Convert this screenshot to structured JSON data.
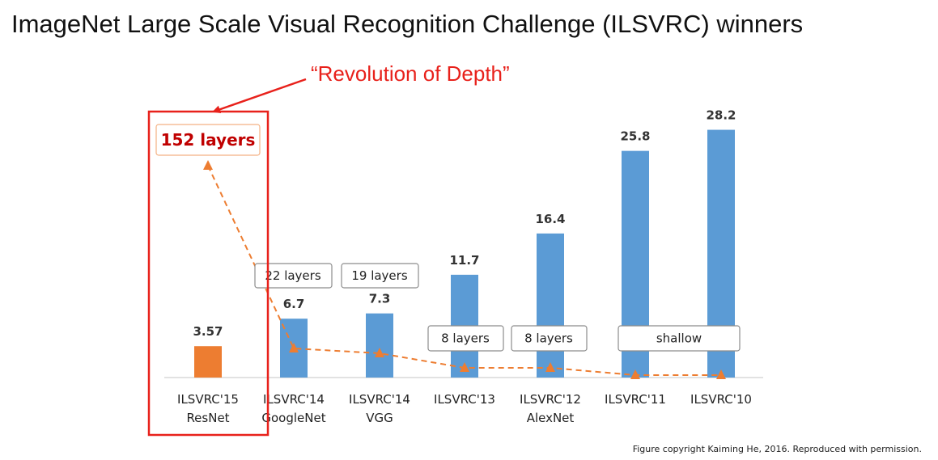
{
  "slide": {
    "title": "ImageNet Large Scale Visual Recognition Challenge (ILSVRC) winners",
    "highlight_note": "“Revolution of Depth”",
    "credit": "Figure copyright Kaiming He, 2016. Reproduced with permission."
  },
  "colors": {
    "accent_red": "#e8211b",
    "resnet_bar": "#ed7d31",
    "other_bar": "#5b9bd5",
    "depth_line": "#ed7d31",
    "highlight_depth_text": "#c00000"
  },
  "chart_data": {
    "type": "bar",
    "title": "",
    "xlabel": "",
    "ylabel": "",
    "ylim": [
      0,
      30
    ],
    "grid": false,
    "categories": [
      [
        "ILSVRC'15",
        "ResNet"
      ],
      [
        "ILSVRC'14",
        "GoogleNet"
      ],
      [
        "ILSVRC'14",
        "VGG"
      ],
      [
        "ILSVRC'13"
      ],
      [
        "ILSVRC'12",
        "AlexNet"
      ],
      [
        "ILSVRC'11"
      ],
      [
        "ILSVRC'10"
      ]
    ],
    "values": [
      3.57,
      6.7,
      7.3,
      11.7,
      16.4,
      25.8,
      28.2
    ],
    "value_labels": [
      "3.57",
      "6.7",
      "7.3",
      "11.7",
      "16.4",
      "25.8",
      "28.2"
    ],
    "bar_colors": [
      "#ed7d31",
      "#5b9bd5",
      "#5b9bd5",
      "#5b9bd5",
      "#5b9bd5",
      "#5b9bd5",
      "#5b9bd5"
    ],
    "depth_labels": [
      "152 layers",
      "22 layers",
      "19 layers",
      "8 layers",
      "8 layers",
      "shallow",
      ""
    ],
    "depth_line": {
      "style": "dashed",
      "marker": "triangle",
      "layers": [
        152,
        22,
        19,
        8,
        8,
        0,
        0
      ]
    },
    "highlighted_category_index": 0
  }
}
